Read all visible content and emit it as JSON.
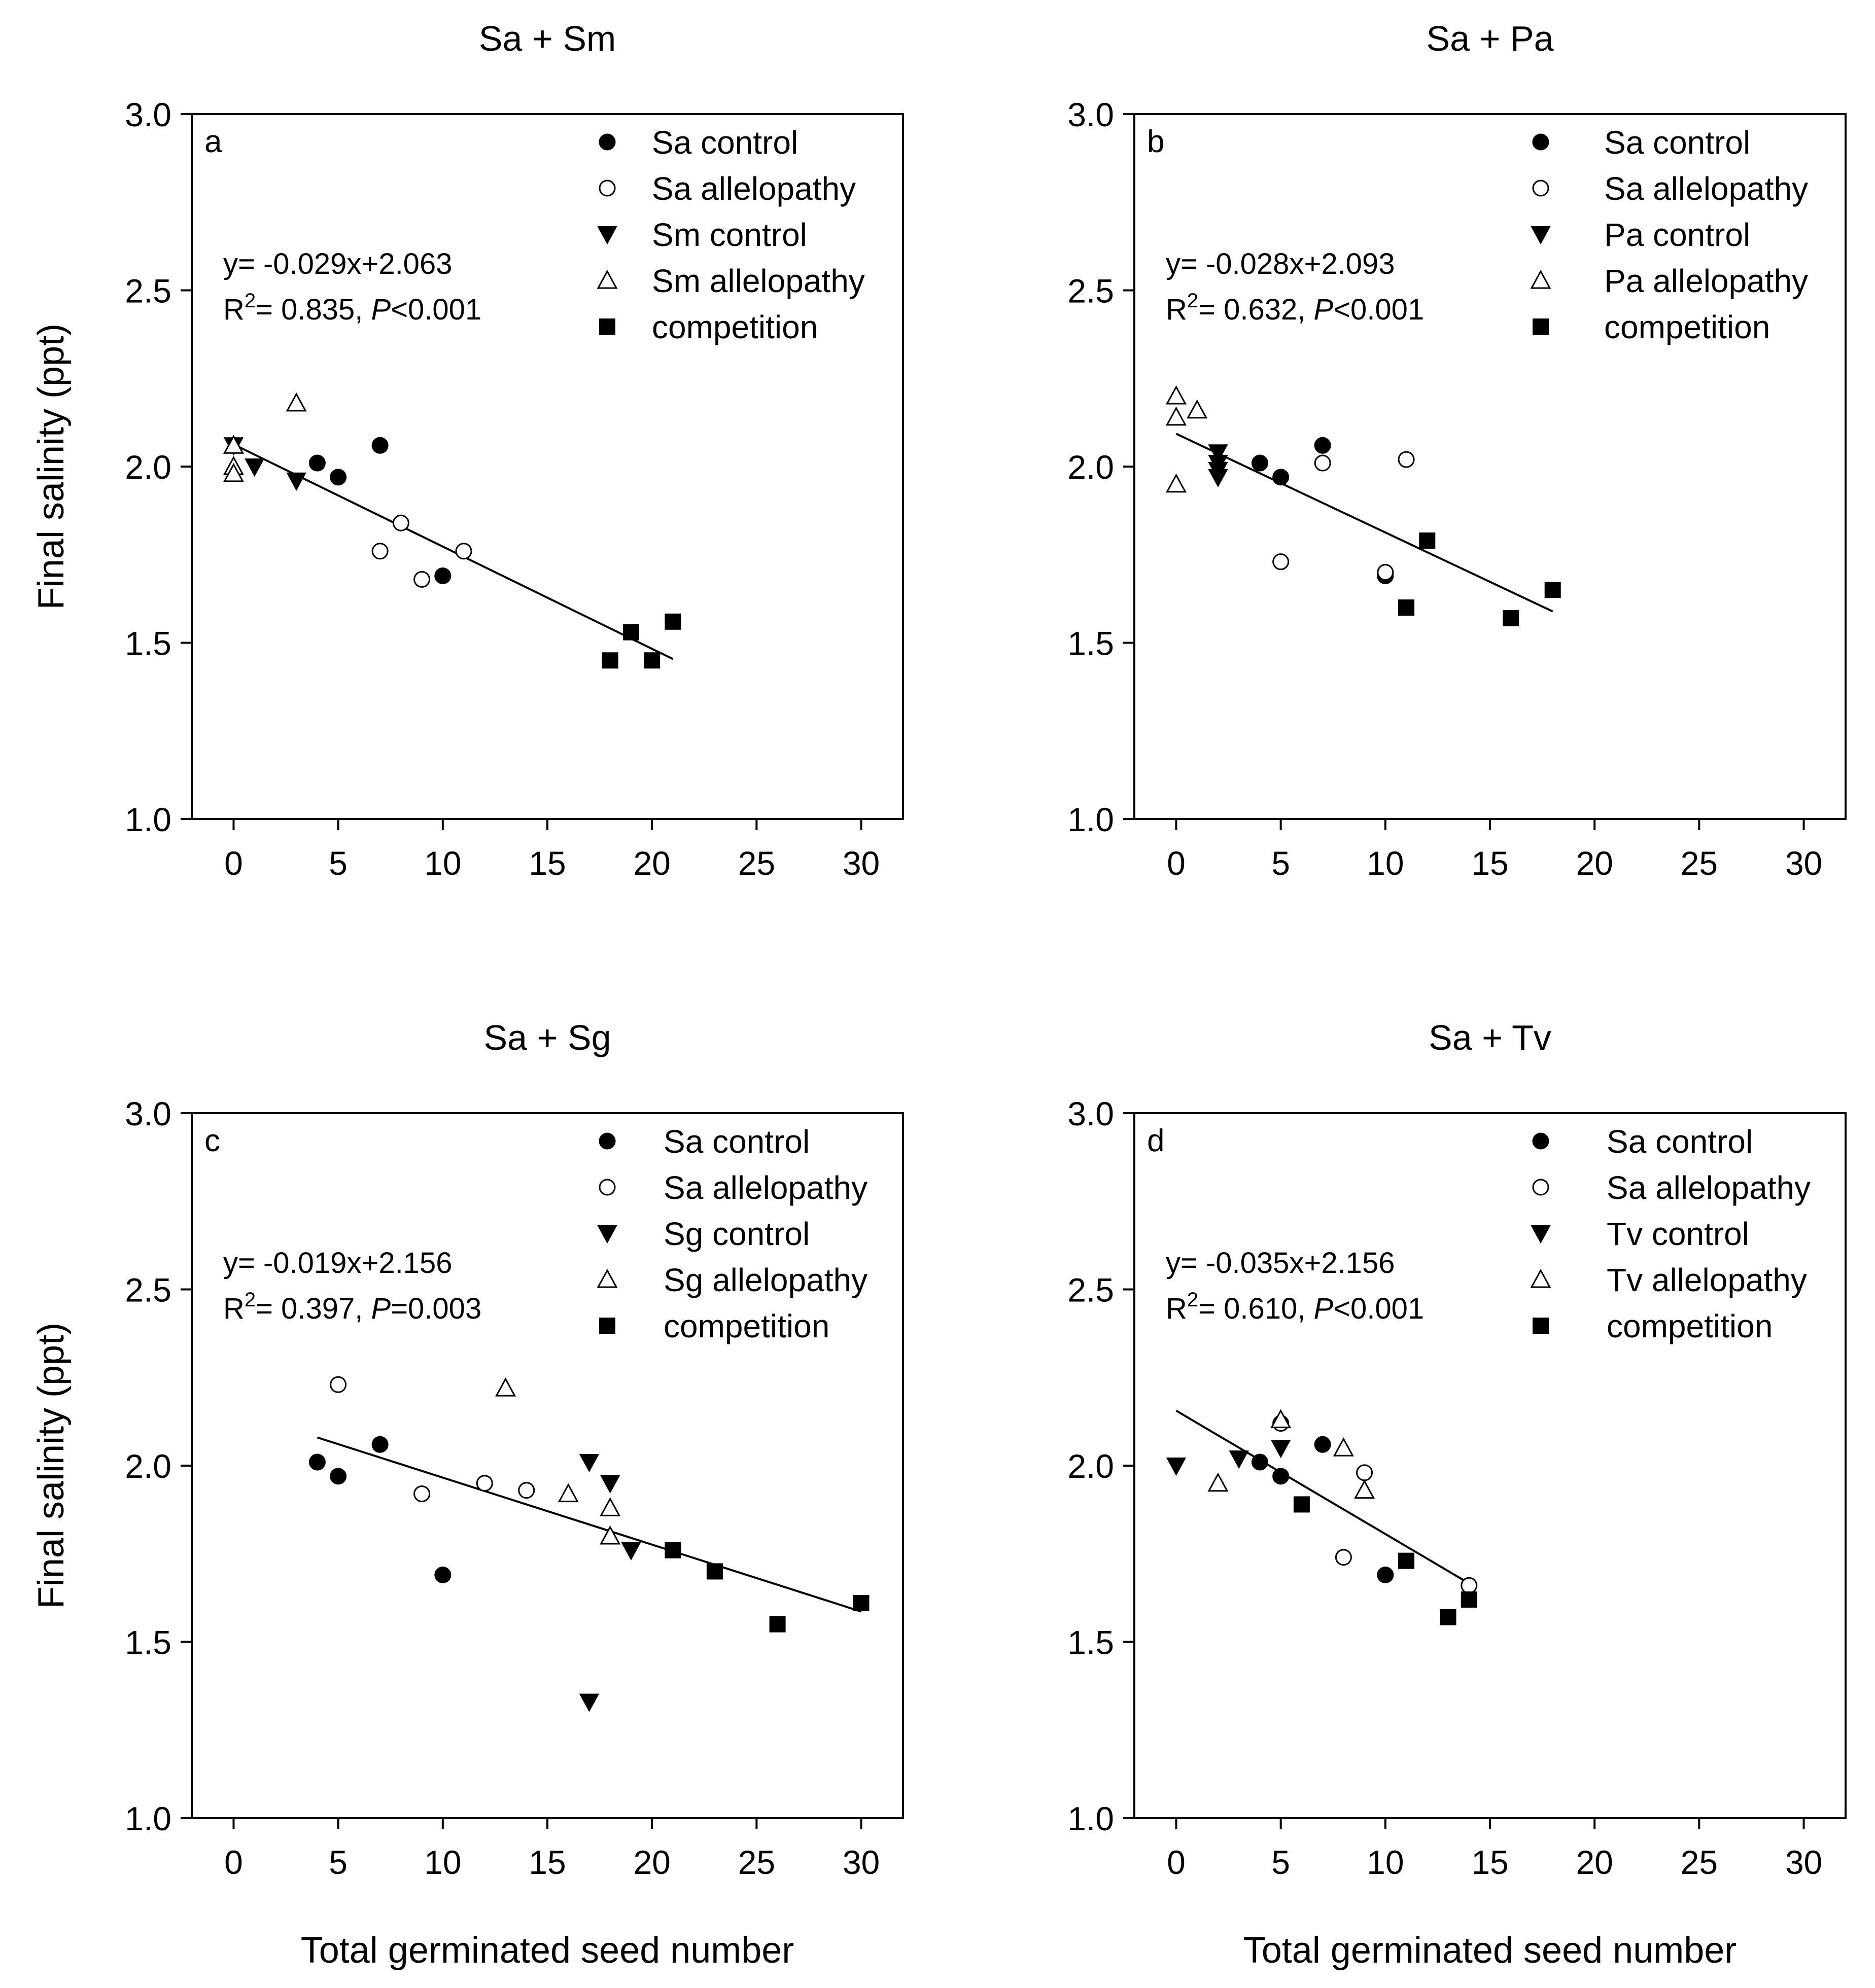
{
  "ylabel": "Final salinity (ppt)",
  "xlabel": "Total germinated seed number",
  "chart_data": [
    {
      "type": "scatter",
      "title": "Sa + Sm",
      "panel_letter": "a",
      "xlabel": "",
      "ylabel": "Final salinity (ppt)",
      "xlim": [
        -2,
        32
      ],
      "ylim": [
        1.0,
        3.0
      ],
      "xticks": [
        "0",
        "5",
        "10",
        "15",
        "20",
        "25",
        "30"
      ],
      "yticks": [
        "1.0",
        "1.5",
        "2.0",
        "2.5",
        "3.0"
      ],
      "legend_position": "top-right",
      "equation": "y= -0.029x+2.063",
      "r2_text": "R",
      "r2_sup": "2",
      "r2_value": "= 0.835, ",
      "p_label": "P",
      "p_value": "<0.001",
      "fit": {
        "slope": -0.029,
        "intercept": 2.063,
        "x_range": [
          0,
          21
        ]
      },
      "series": [
        {
          "name": "Sa control",
          "marker": "filled-circle",
          "points": [
            [
              4,
              2.01
            ],
            [
              5,
              1.97
            ],
            [
              7,
              2.06
            ],
            [
              10,
              1.69
            ]
          ]
        },
        {
          "name": "Sa allelopathy",
          "marker": "open-circle",
          "points": [
            [
              7,
              1.76
            ],
            [
              8,
              1.84
            ],
            [
              9,
              1.68
            ],
            [
              11,
              1.76
            ]
          ]
        },
        {
          "name": "Sm control",
          "marker": "filled-triangle-down",
          "points": [
            [
              0,
              2.06
            ],
            [
              1,
              2.0
            ],
            [
              3,
              1.96
            ]
          ]
        },
        {
          "name": "Sm allelopathy",
          "marker": "open-triangle-up",
          "points": [
            [
              0,
              2.06
            ],
            [
              0,
              2.0
            ],
            [
              0,
              1.98
            ],
            [
              3,
              2.18
            ]
          ]
        },
        {
          "name": "competition",
          "marker": "filled-square",
          "points": [
            [
              18,
              1.45
            ],
            [
              19,
              1.53
            ],
            [
              20,
              1.45
            ],
            [
              21,
              1.56
            ]
          ]
        }
      ]
    },
    {
      "type": "scatter",
      "title": "Sa + Pa",
      "panel_letter": "b",
      "xlabel": "",
      "ylabel": "",
      "xlim": [
        -2,
        32
      ],
      "ylim": [
        1.0,
        3.0
      ],
      "xticks": [
        "0",
        "5",
        "10",
        "15",
        "20",
        "25",
        "30"
      ],
      "yticks": [
        "1.0",
        "1.5",
        "2.0",
        "2.5",
        "3.0"
      ],
      "legend_position": "top-right",
      "equation": "y= -0.028x+2.093",
      "r2_text": "R",
      "r2_sup": "2",
      "r2_value": "= 0.632, ",
      "p_label": "P",
      "p_value": "<0.001",
      "fit": {
        "slope": -0.028,
        "intercept": 2.093,
        "x_range": [
          0,
          18
        ]
      },
      "series": [
        {
          "name": "Sa control",
          "marker": "filled-circle",
          "points": [
            [
              4,
              2.01
            ],
            [
              5,
              1.97
            ],
            [
              7,
              2.06
            ],
            [
              10,
              1.69
            ]
          ]
        },
        {
          "name": "Sa allelopathy",
          "marker": "open-circle",
          "points": [
            [
              5,
              1.73
            ],
            [
              7,
              2.01
            ],
            [
              10,
              1.7
            ],
            [
              11,
              2.02
            ]
          ]
        },
        {
          "name": "Pa control",
          "marker": "filled-triangle-down",
          "points": [
            [
              2,
              2.04
            ],
            [
              2,
              2.01
            ],
            [
              2,
              1.99
            ],
            [
              2,
              1.97
            ]
          ]
        },
        {
          "name": "Pa allelopathy",
          "marker": "open-triangle-up",
          "points": [
            [
              0,
              2.2
            ],
            [
              0,
              2.14
            ],
            [
              1,
              2.16
            ],
            [
              0,
              1.95
            ]
          ]
        },
        {
          "name": "competition",
          "marker": "filled-square",
          "points": [
            [
              11,
              1.6
            ],
            [
              12,
              1.79
            ],
            [
              16,
              1.57
            ],
            [
              18,
              1.65
            ]
          ]
        }
      ]
    },
    {
      "type": "scatter",
      "title": "Sa + Sg",
      "panel_letter": "c",
      "xlabel": "Total germinated seed number",
      "ylabel": "Final salinity (ppt)",
      "xlim": [
        -2,
        32
      ],
      "ylim": [
        1.0,
        3.0
      ],
      "xticks": [
        "0",
        "5",
        "10",
        "15",
        "20",
        "25",
        "30"
      ],
      "yticks": [
        "1.0",
        "1.5",
        "2.0",
        "2.5",
        "3.0"
      ],
      "legend_position": "top-right",
      "equation": "y= -0.019x+2.156",
      "r2_text": "R",
      "r2_sup": "2",
      "r2_value": "= 0.397, ",
      "p_label": "P",
      "p_value": "=0.003",
      "fit": {
        "slope": -0.019,
        "intercept": 2.156,
        "x_range": [
          4,
          30
        ]
      },
      "series": [
        {
          "name": "Sa control",
          "marker": "filled-circle",
          "points": [
            [
              4,
              2.01
            ],
            [
              5,
              1.97
            ],
            [
              7,
              2.06
            ],
            [
              10,
              1.69
            ]
          ]
        },
        {
          "name": "Sa allelopathy",
          "marker": "open-circle",
          "points": [
            [
              5,
              2.23
            ],
            [
              9,
              1.92
            ],
            [
              12,
              1.95
            ],
            [
              14,
              1.93
            ]
          ]
        },
        {
          "name": "Sg control",
          "marker": "filled-triangle-down",
          "points": [
            [
              17,
              2.01
            ],
            [
              18,
              1.95
            ],
            [
              19,
              1.76
            ],
            [
              17,
              1.33
            ]
          ]
        },
        {
          "name": "Sg allelopathy",
          "marker": "open-triangle-up",
          "points": [
            [
              13,
              2.22
            ],
            [
              16,
              1.92
            ],
            [
              18,
              1.88
            ],
            [
              18,
              1.8
            ]
          ]
        },
        {
          "name": "competition",
          "marker": "filled-square",
          "points": [
            [
              21,
              1.76
            ],
            [
              23,
              1.7
            ],
            [
              26,
              1.55
            ],
            [
              30,
              1.61
            ]
          ]
        }
      ]
    },
    {
      "type": "scatter",
      "title": "Sa + Tv",
      "panel_letter": "d",
      "xlabel": "Total germinated seed number",
      "ylabel": "",
      "xlim": [
        -2,
        32
      ],
      "ylim": [
        1.0,
        3.0
      ],
      "xticks": [
        "0",
        "5",
        "10",
        "15",
        "20",
        "25",
        "30"
      ],
      "yticks": [
        "1.0",
        "1.5",
        "2.0",
        "2.5",
        "3.0"
      ],
      "legend_position": "top-right",
      "equation": "y= -0.035x+2.156",
      "r2_text": "R",
      "r2_sup": "2",
      "r2_value": "= 0.610, ",
      "p_label": "P",
      "p_value": "<0.001",
      "fit": {
        "slope": -0.035,
        "intercept": 2.156,
        "x_range": [
          0,
          14
        ]
      },
      "series": [
        {
          "name": "Sa control",
          "marker": "filled-circle",
          "points": [
            [
              4,
              2.01
            ],
            [
              5,
              1.97
            ],
            [
              7,
              2.06
            ],
            [
              10,
              1.69
            ]
          ]
        },
        {
          "name": "Sa allelopathy",
          "marker": "open-circle",
          "points": [
            [
              5,
              2.12
            ],
            [
              8,
              1.74
            ],
            [
              9,
              1.98
            ],
            [
              14,
              1.66
            ]
          ]
        },
        {
          "name": "Tv control",
          "marker": "filled-triangle-down",
          "points": [
            [
              0,
              2.0
            ],
            [
              3,
              2.02
            ],
            [
              5,
              2.05
            ]
          ]
        },
        {
          "name": "Tv allelopathy",
          "marker": "open-triangle-up",
          "points": [
            [
              2,
              1.95
            ],
            [
              5,
              2.13
            ],
            [
              8,
              2.05
            ],
            [
              9,
              1.93
            ]
          ]
        },
        {
          "name": "competition",
          "marker": "filled-square",
          "points": [
            [
              6,
              1.89
            ],
            [
              11,
              1.73
            ],
            [
              13,
              1.57
            ],
            [
              14,
              1.62
            ]
          ]
        }
      ]
    }
  ]
}
